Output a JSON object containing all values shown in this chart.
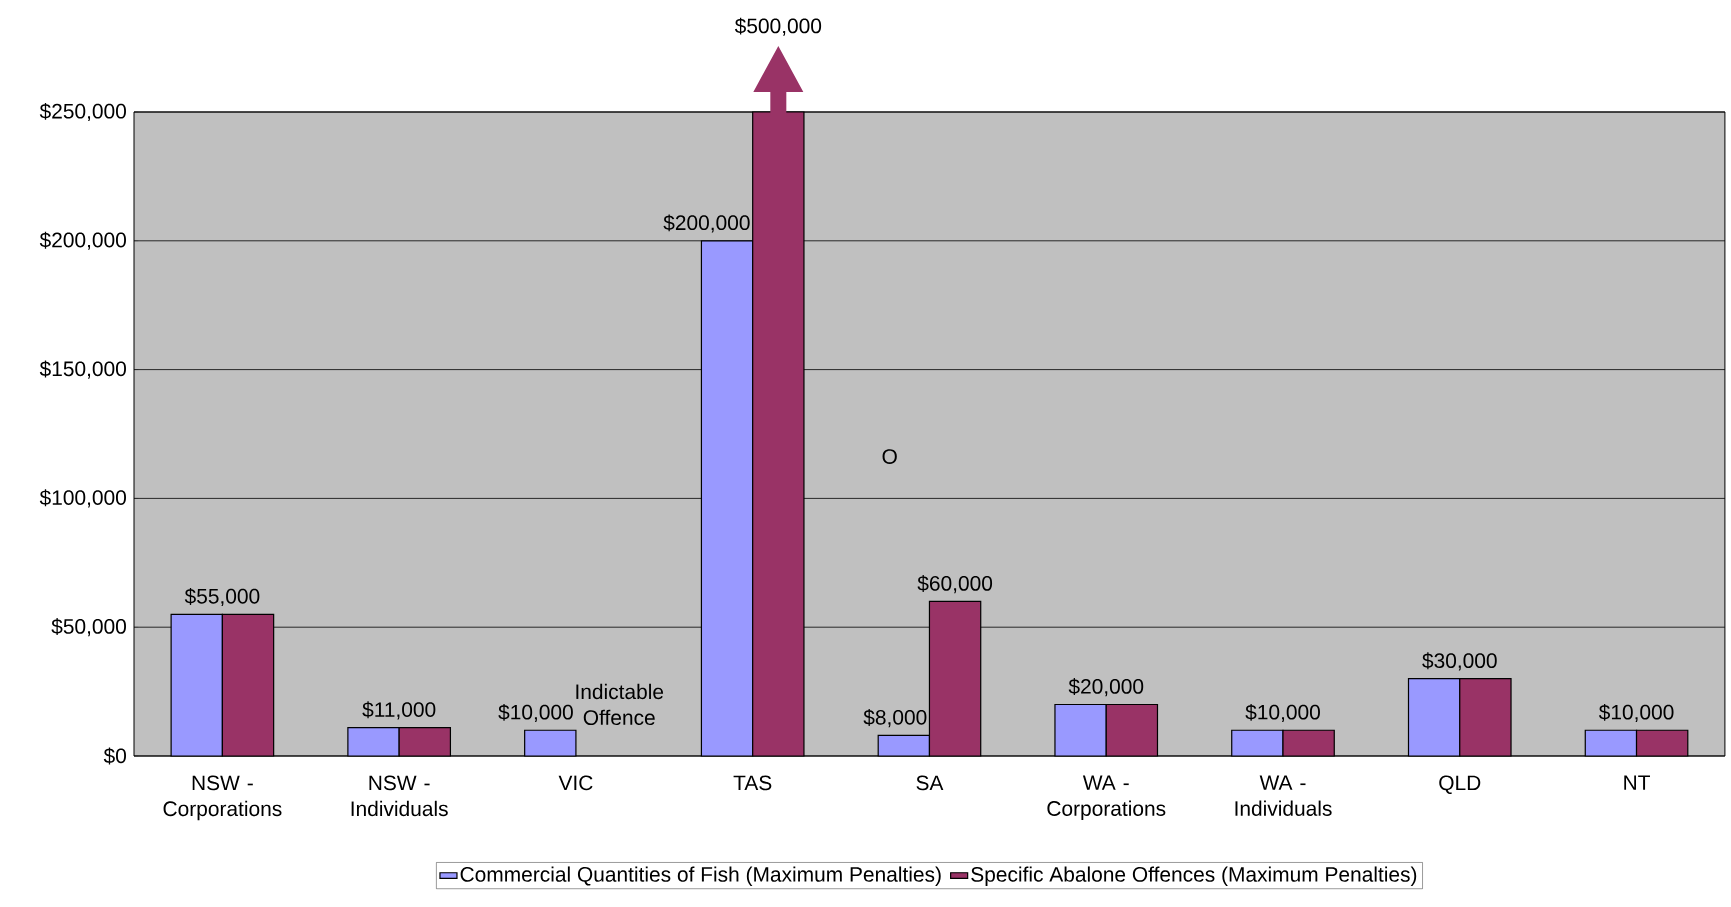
{
  "chart_data": {
    "type": "bar",
    "categories": [
      "NSW - Corporations",
      "NSW - Individuals",
      "VIC",
      "TAS",
      "SA",
      "WA - Corporations",
      "WA - Individuals",
      "QLD",
      "NT"
    ],
    "series": [
      {
        "name": "Commercial Quantities of Fish (Maximum Penalties)",
        "color": "#9999ff",
        "values": [
          55000,
          11000,
          10000,
          200000,
          8000,
          20000,
          10000,
          30000,
          10000
        ],
        "value_labels": [
          "$55,000",
          "$11,000",
          "$10,000",
          "$200,000",
          "$8,000",
          "$20,000",
          "$10,000",
          "$30,000",
          "$10,000"
        ]
      },
      {
        "name": "Specific Abalone Offences (Maximum Penalties)",
        "color": "#993366",
        "values": [
          55000,
          11000,
          null,
          250000,
          60000,
          20000,
          10000,
          30000,
          10000
        ],
        "value_labels": [
          null,
          null,
          null,
          null,
          "$60,000",
          null,
          null,
          null,
          null
        ]
      }
    ],
    "ylim": [
      0,
      250000
    ],
    "yticks": [
      {
        "value": 0,
        "label": "$0"
      },
      {
        "value": 50000,
        "label": "$50,000"
      },
      {
        "value": 100000,
        "label": "$100,000"
      },
      {
        "value": 150000,
        "label": "$150,000"
      },
      {
        "value": 200000,
        "label": "$200,000"
      },
      {
        "value": 250000,
        "label": "$250,000"
      }
    ],
    "grid": "y",
    "legend": "bottom",
    "annotations": [
      "$500,000",
      {
        "text": "Indictable Offence",
        "x": "VIC",
        "y": 10000
      },
      "O"
    ]
  }
}
